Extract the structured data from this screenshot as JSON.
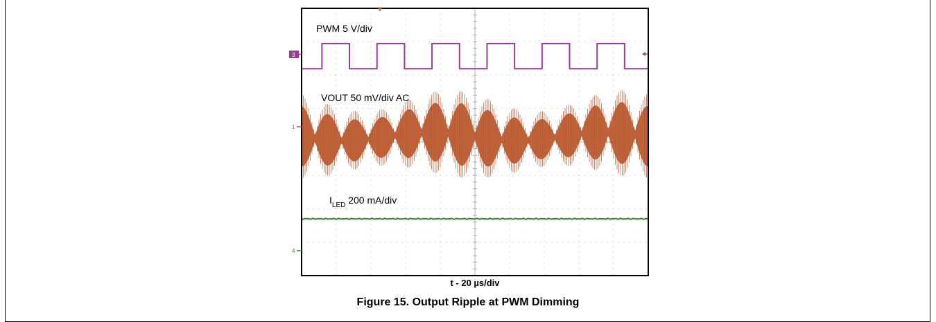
{
  "figure": {
    "caption": "Figure 15. Output Ripple at PWM Dimming",
    "time_label": "t - 20 µs/div"
  },
  "chart_data": {
    "type": "line",
    "title": "",
    "xlabel": "t - 20 µs/div",
    "grid": true,
    "grid_divisions": {
      "x": 10,
      "y": 8
    },
    "channels": [
      {
        "id": "3",
        "label": "PWM  5 V/div",
        "color": "#9b3d97",
        "waveform": "square",
        "periods_on_screen": 6.3,
        "duty_cycle": 0.5,
        "amplitude_div": 0.75
      },
      {
        "id": "1",
        "label": "VOUT 50 mV/div AC",
        "color": "#b8552a",
        "waveform": "ripple",
        "envelope_cycles": 13,
        "switching_lines": 200,
        "amplitude_div": 1.3
      },
      {
        "id": "4",
        "label_main": "I",
        "label_sub": "LED",
        "label_rest": " 200 mA/div",
        "color": "#2d8c2d",
        "waveform": "dc"
      }
    ]
  }
}
